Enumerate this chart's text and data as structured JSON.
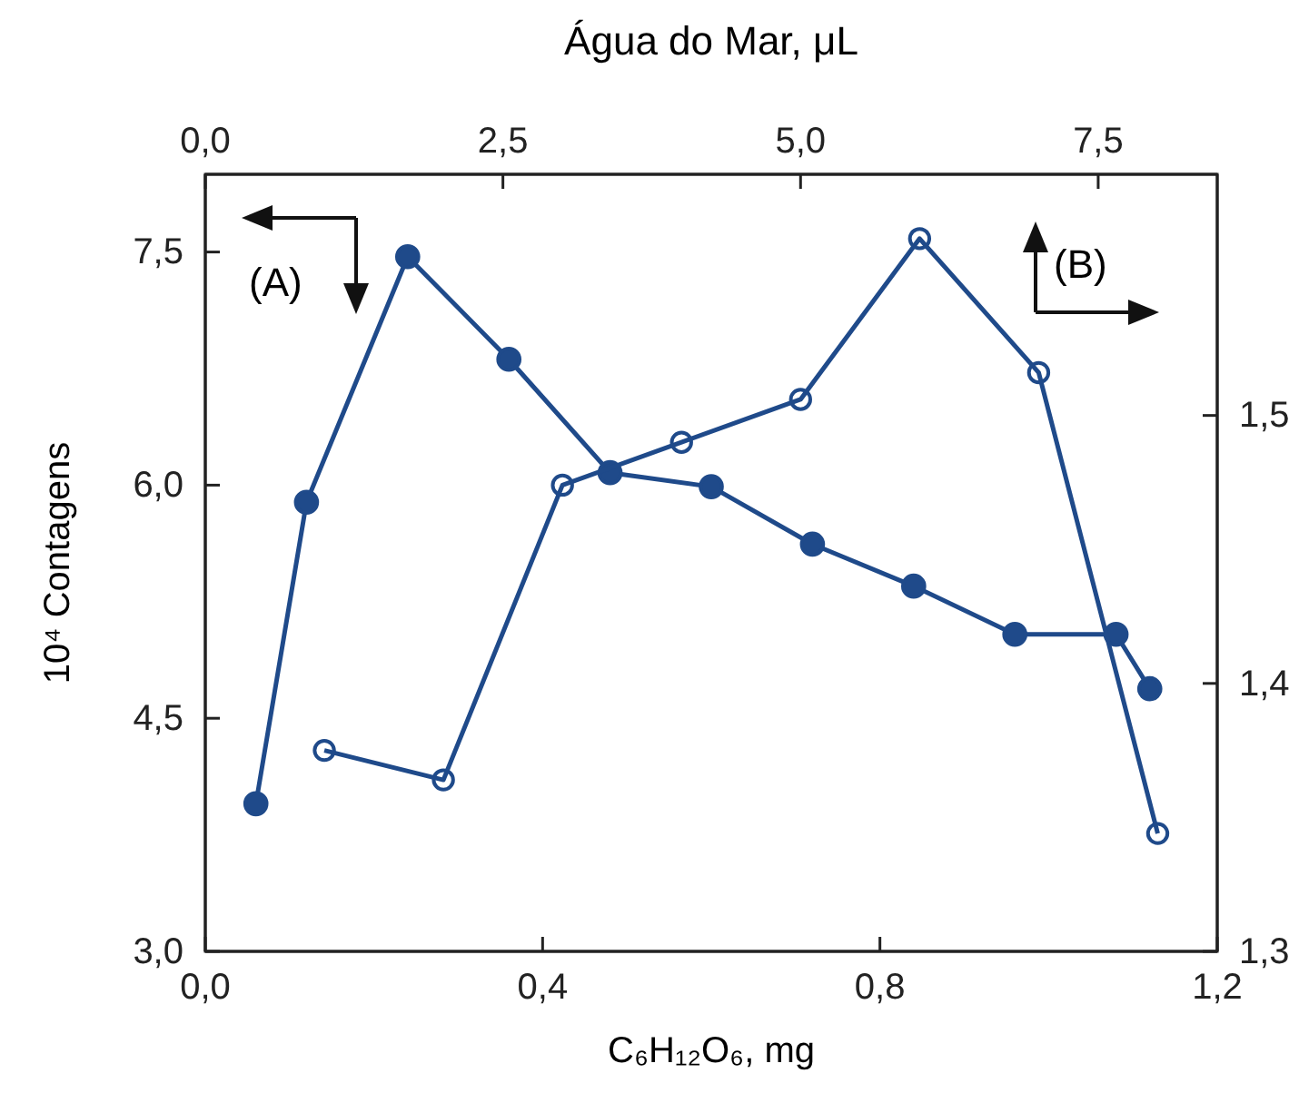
{
  "chart_data": [
    {
      "type": "line",
      "xlabel": "C₆H₁₂O₆, mg",
      "ylabel": "10⁴ Contagens",
      "xlim": [
        0,
        1.2
      ],
      "xticks": [
        {
          "value": 0,
          "label": "0,0"
        },
        {
          "value": 0.4,
          "label": "0,4"
        },
        {
          "value": 0.8,
          "label": "0,8"
        },
        {
          "value": 1.2,
          "label": "1,2"
        }
      ],
      "ylim": [
        3,
        8
      ],
      "yticks": [
        {
          "value": 3,
          "label": "3,0"
        },
        {
          "value": 4.5,
          "label": "4,5"
        },
        {
          "value": 6,
          "label": "6,0"
        },
        {
          "value": 7.5,
          "label": "7,5"
        }
      ],
      "marker": "circle",
      "series": [
        {
          "color": "#1f4a8a",
          "x": [
            0.06,
            0.12,
            0.24,
            0.36,
            0.48,
            0.6,
            0.72,
            0.84,
            0.96,
            1.08,
            1.12
          ],
          "values": [
            3.95,
            5.89,
            7.47,
            6.81,
            6.08,
            5.99,
            5.62,
            5.35,
            5.04,
            5.04,
            4.69
          ]
        }
      ],
      "annotations": [
        "(A)"
      ]
    },
    {
      "type": "line",
      "xlabel": "Água do Mar, μL",
      "xlim": [
        0,
        8.5
      ],
      "xticks": [
        {
          "value": 0,
          "label": "0,0"
        },
        {
          "value": 2.5,
          "label": "2,5"
        },
        {
          "value": 5,
          "label": "5,0"
        },
        {
          "value": 7.5,
          "label": "7,5"
        }
      ],
      "ylim": [
        1.3,
        1.59
      ],
      "yticks": [
        {
          "value": 1.3,
          "label": "1,3"
        },
        {
          "value": 1.4,
          "label": "1,4"
        },
        {
          "value": 1.5,
          "label": "1,5"
        }
      ],
      "marker": "circle",
      "series": [
        {
          "color": "#1f4a8a",
          "x": [
            1,
            2,
            3,
            4,
            5,
            6,
            7,
            8
          ],
          "values": [
            1.375,
            1.364,
            1.474,
            1.49,
            1.506,
            1.566,
            1.516,
            1.344
          ]
        }
      ],
      "annotations": [
        "(B)"
      ]
    }
  ]
}
